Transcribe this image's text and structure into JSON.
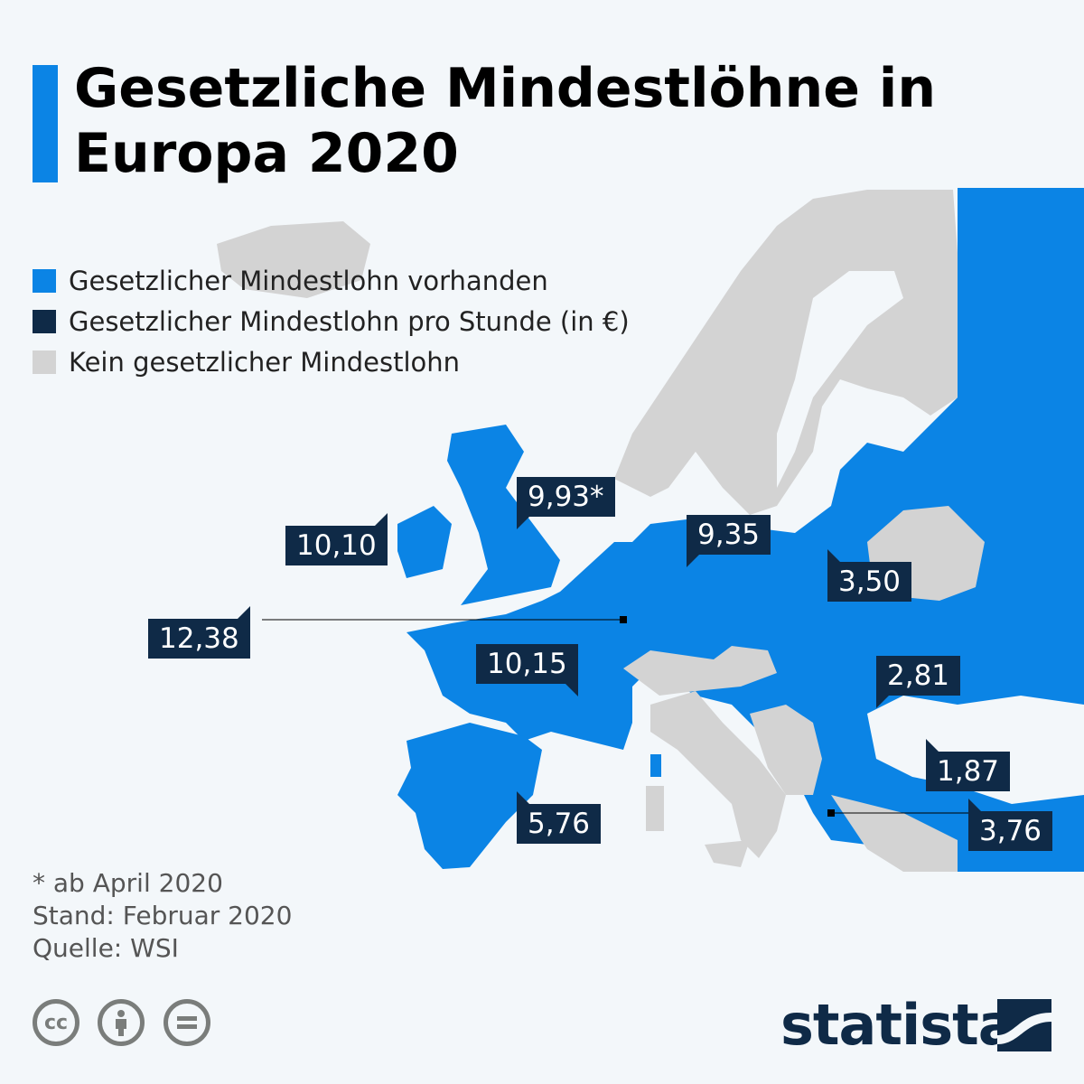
{
  "title": "Gesetzliche Mindestlöhne in Europa 2020",
  "legend": [
    {
      "label": "Gesetzlicher Mindestlohn vorhanden",
      "color": "#0b84e5"
    },
    {
      "label": "Gesetzlicher Mindestlohn pro Stunde (in €)",
      "color": "#0f2a47"
    },
    {
      "label": "Kein gesetzlicher Mindestlohn",
      "color": "#d3d3d3"
    }
  ],
  "map_labels": [
    "10,10",
    "9,93*",
    "9,35",
    "3,50",
    "12,38",
    "10,15",
    "2,81",
    "1,87",
    "3,76",
    "5,76"
  ],
  "footer": {
    "note": "* ab April 2020",
    "date": "Stand: Februar 2020",
    "source": "Quelle: WSI"
  },
  "license_icons": [
    "cc-icon",
    "attribution-icon",
    "no-derivatives-icon"
  ],
  "brand": "statista",
  "colors": {
    "minimum_wage": "#0b84e5",
    "label": "#0f2a47",
    "no_minimum_wage": "#d3d3d3",
    "background": "#f3f7fa"
  }
}
